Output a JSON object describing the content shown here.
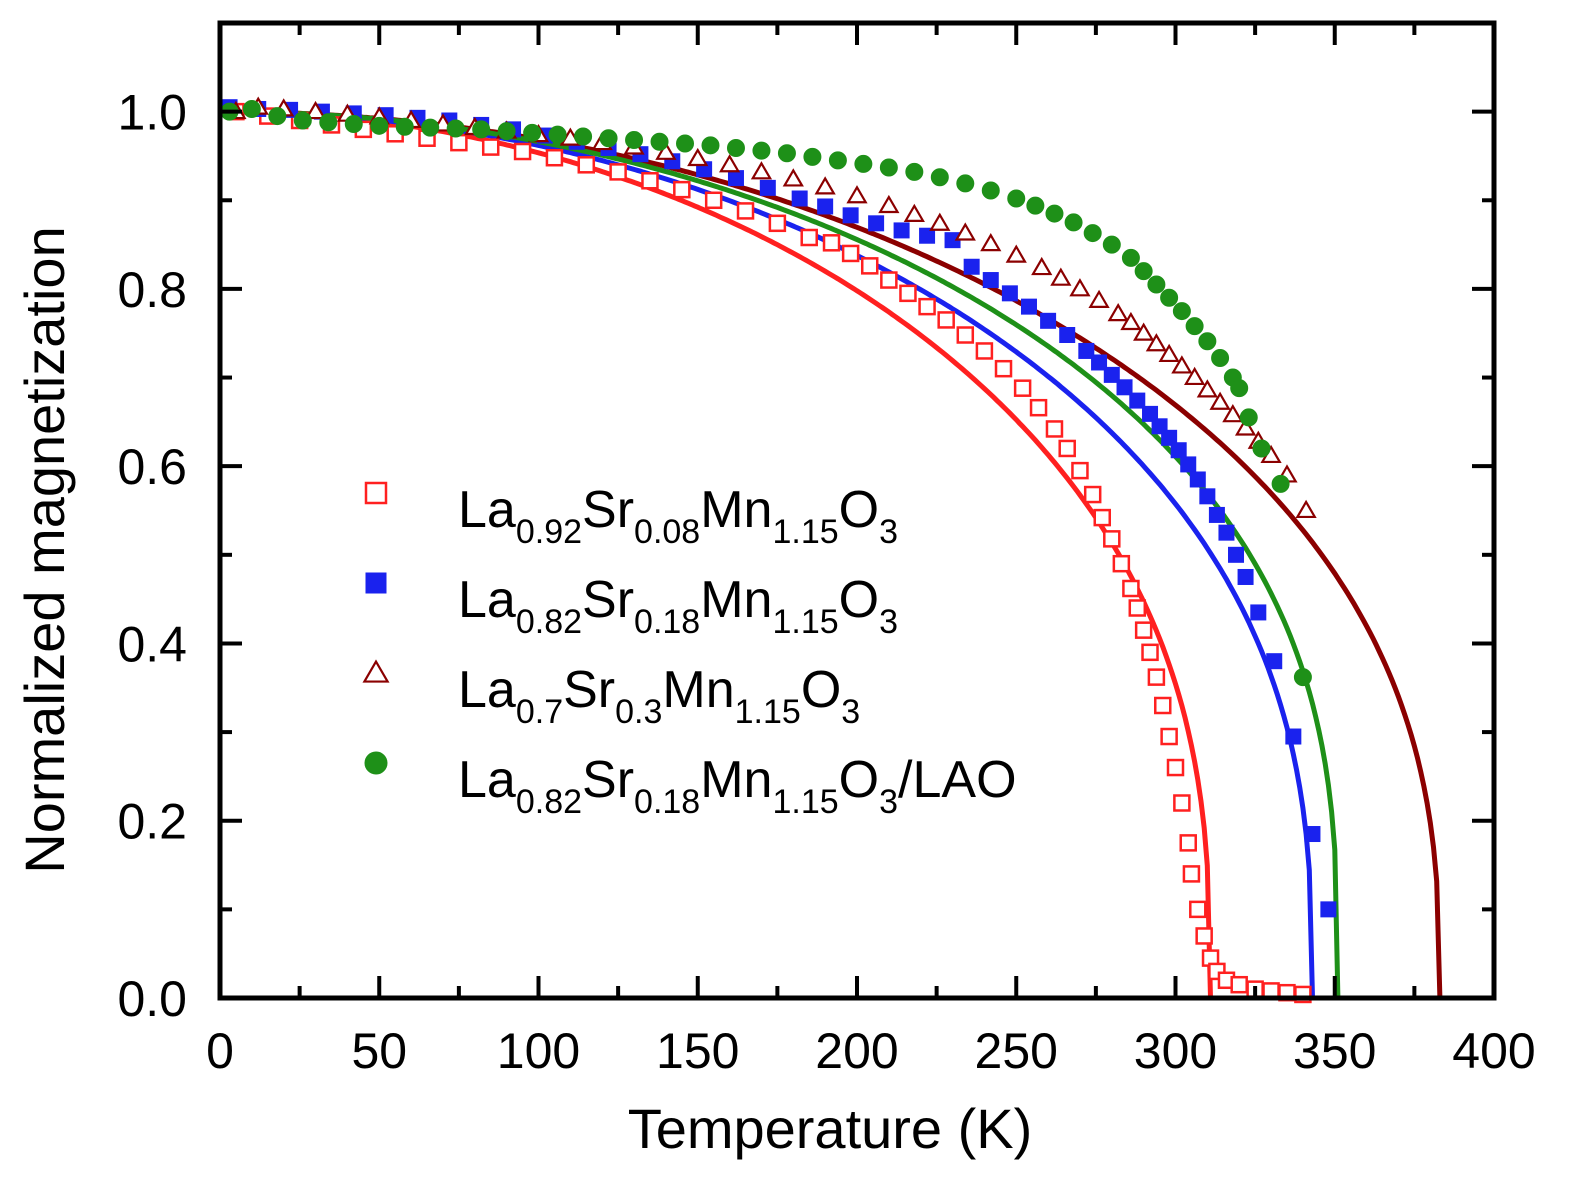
{
  "chart_data": {
    "type": "scatter",
    "title": "",
    "xlabel": "Temperature (K)",
    "ylabel": "Normalized magnetization",
    "xlim": [
      0,
      400
    ],
    "ylim": [
      0,
      1.1
    ],
    "xticks": [
      0,
      50,
      100,
      150,
      200,
      250,
      300,
      350,
      400
    ],
    "yticks": [
      0.0,
      0.2,
      0.4,
      0.6,
      0.8,
      1.0
    ],
    "xtick_labels": [
      "0",
      "50",
      "100",
      "150",
      "200",
      "250",
      "300",
      "350",
      "400"
    ],
    "ytick_labels": [
      "0.0",
      "0.2",
      "0.4",
      "0.6",
      "0.8",
      "1.0"
    ],
    "legend_position": "center-left",
    "series": [
      {
        "name": "La0.92Sr0.08Mn1.15O3",
        "legend_parts": [
          [
            "La",
            ""
          ],
          [
            "0.92",
            "sub"
          ],
          [
            "Sr",
            ""
          ],
          [
            "0.08",
            "sub"
          ],
          [
            "Mn",
            ""
          ],
          [
            "1.15",
            "sub"
          ],
          [
            "O",
            ""
          ],
          [
            "3",
            "sub"
          ]
        ],
        "color": "#ff2020",
        "marker": "open-square",
        "fit": {
          "tc": 311,
          "beta": 0.36,
          "pre": [
            0,
            1,
            0.97,
            0.03
          ],
          "n": 2
        },
        "points": [
          [
            5,
            1.0
          ],
          [
            15,
            0.995
          ],
          [
            25,
            0.99
          ],
          [
            35,
            0.985
          ],
          [
            45,
            0.98
          ],
          [
            55,
            0.975
          ],
          [
            65,
            0.97
          ],
          [
            75,
            0.965
          ],
          [
            85,
            0.96
          ],
          [
            95,
            0.955
          ],
          [
            105,
            0.948
          ],
          [
            115,
            0.94
          ],
          [
            125,
            0.932
          ],
          [
            135,
            0.922
          ],
          [
            145,
            0.912
          ],
          [
            155,
            0.9
          ],
          [
            165,
            0.888
          ],
          [
            175,
            0.874
          ],
          [
            185,
            0.858
          ],
          [
            192,
            0.852
          ],
          [
            198,
            0.84
          ],
          [
            204,
            0.826
          ],
          [
            210,
            0.81
          ],
          [
            216,
            0.795
          ],
          [
            222,
            0.78
          ],
          [
            228,
            0.765
          ],
          [
            234,
            0.748
          ],
          [
            240,
            0.73
          ],
          [
            246,
            0.71
          ],
          [
            252,
            0.688
          ],
          [
            257,
            0.666
          ],
          [
            262,
            0.642
          ],
          [
            266,
            0.62
          ],
          [
            270,
            0.595
          ],
          [
            274,
            0.568
          ],
          [
            277,
            0.542
          ],
          [
            280,
            0.518
          ],
          [
            283,
            0.49
          ],
          [
            286,
            0.462
          ],
          [
            288,
            0.44
          ],
          [
            290,
            0.415
          ],
          [
            292,
            0.39
          ],
          [
            294,
            0.362
          ],
          [
            296,
            0.33
          ],
          [
            298,
            0.295
          ],
          [
            300,
            0.26
          ],
          [
            302,
            0.22
          ],
          [
            304,
            0.175
          ],
          [
            305,
            0.14
          ],
          [
            307,
            0.1
          ],
          [
            309,
            0.07
          ],
          [
            311,
            0.045
          ],
          [
            313,
            0.03
          ],
          [
            316,
            0.02
          ],
          [
            320,
            0.015
          ],
          [
            325,
            0.01
          ],
          [
            330,
            0.008
          ],
          [
            335,
            0.006
          ],
          [
            340,
            0.004
          ]
        ]
      },
      {
        "name": "La0.82Sr0.18Mn1.15O3",
        "legend_parts": [
          [
            "La",
            ""
          ],
          [
            "0.82",
            "sub"
          ],
          [
            "Sr",
            ""
          ],
          [
            "0.18",
            "sub"
          ],
          [
            "Mn",
            ""
          ],
          [
            "1.15",
            "sub"
          ],
          [
            "O",
            ""
          ],
          [
            "3",
            "sub"
          ]
        ],
        "color": "#1a22ee",
        "marker": "filled-square",
        "fit": {
          "tc": 343,
          "beta": 0.36,
          "pre": [
            0,
            1,
            0.975,
            0.025
          ],
          "n": 2
        },
        "points": [
          [
            3,
            1.005
          ],
          [
            12,
            1.003
          ],
          [
            22,
            1.002
          ],
          [
            32,
            1.0
          ],
          [
            42,
            0.998
          ],
          [
            52,
            0.996
          ],
          [
            62,
            0.993
          ],
          [
            72,
            0.99
          ],
          [
            82,
            0.985
          ],
          [
            92,
            0.98
          ],
          [
            102,
            0.973
          ],
          [
            112,
            0.966
          ],
          [
            122,
            0.959
          ],
          [
            132,
            0.952
          ],
          [
            142,
            0.944
          ],
          [
            152,
            0.935
          ],
          [
            162,
            0.925
          ],
          [
            172,
            0.914
          ],
          [
            182,
            0.902
          ],
          [
            190,
            0.893
          ],
          [
            198,
            0.883
          ],
          [
            206,
            0.874
          ],
          [
            214,
            0.866
          ],
          [
            222,
            0.86
          ],
          [
            230,
            0.855
          ],
          [
            236,
            0.825
          ],
          [
            242,
            0.81
          ],
          [
            248,
            0.795
          ],
          [
            254,
            0.78
          ],
          [
            260,
            0.764
          ],
          [
            266,
            0.748
          ],
          [
            272,
            0.73
          ],
          [
            276,
            0.717
          ],
          [
            280,
            0.703
          ],
          [
            284,
            0.689
          ],
          [
            288,
            0.674
          ],
          [
            292,
            0.659
          ],
          [
            295,
            0.645
          ],
          [
            298,
            0.632
          ],
          [
            301,
            0.618
          ],
          [
            304,
            0.602
          ],
          [
            307,
            0.585
          ],
          [
            310,
            0.566
          ],
          [
            313,
            0.545
          ],
          [
            316,
            0.525
          ],
          [
            319,
            0.5
          ],
          [
            322,
            0.475
          ],
          [
            326,
            0.435
          ],
          [
            331,
            0.38
          ],
          [
            337,
            0.295
          ],
          [
            343,
            0.185
          ],
          [
            348,
            0.1
          ]
        ]
      },
      {
        "name": "La0.7Sr0.3Mn1.15O3",
        "legend_parts": [
          [
            "La",
            ""
          ],
          [
            "0.7",
            "sub"
          ],
          [
            "Sr",
            ""
          ],
          [
            "0.3",
            "sub"
          ],
          [
            "Mn",
            ""
          ],
          [
            "1.15",
            "sub"
          ],
          [
            "O",
            ""
          ],
          [
            "3",
            "sub"
          ]
        ],
        "color": "#8b0000",
        "marker": "open-triangle",
        "fit": {
          "tc": 383,
          "beta": 0.37,
          "pre": [
            0,
            1,
            0.995,
            0.005
          ],
          "n": 2
        },
        "points": [
          [
            5,
            1.0
          ],
          [
            12,
            1.005
          ],
          [
            20,
            1.003
          ],
          [
            30,
            1.0
          ],
          [
            40,
            0.997
          ],
          [
            50,
            0.994
          ],
          [
            60,
            0.99
          ],
          [
            70,
            0.986
          ],
          [
            80,
            0.982
          ],
          [
            90,
            0.978
          ],
          [
            100,
            0.974
          ],
          [
            110,
            0.97
          ],
          [
            120,
            0.965
          ],
          [
            130,
            0.96
          ],
          [
            140,
            0.954
          ],
          [
            150,
            0.947
          ],
          [
            160,
            0.94
          ],
          [
            170,
            0.932
          ],
          [
            180,
            0.924
          ],
          [
            190,
            0.915
          ],
          [
            200,
            0.905
          ],
          [
            210,
            0.894
          ],
          [
            218,
            0.884
          ],
          [
            226,
            0.874
          ],
          [
            234,
            0.863
          ],
          [
            242,
            0.851
          ],
          [
            250,
            0.838
          ],
          [
            258,
            0.824
          ],
          [
            264,
            0.812
          ],
          [
            270,
            0.8
          ],
          [
            276,
            0.787
          ],
          [
            282,
            0.772
          ],
          [
            286,
            0.762
          ],
          [
            290,
            0.75
          ],
          [
            294,
            0.738
          ],
          [
            298,
            0.726
          ],
          [
            302,
            0.713
          ],
          [
            306,
            0.7
          ],
          [
            310,
            0.686
          ],
          [
            314,
            0.672
          ],
          [
            318,
            0.658
          ],
          [
            322,
            0.643
          ],
          [
            326,
            0.628
          ],
          [
            330,
            0.612
          ],
          [
            335,
            0.59
          ],
          [
            341,
            0.55
          ]
        ]
      },
      {
        "name": "La0.82Sr0.18Mn1.15O3/LAO",
        "legend_parts": [
          [
            "La",
            ""
          ],
          [
            "0.82",
            "sub"
          ],
          [
            "Sr",
            ""
          ],
          [
            "0.18",
            "sub"
          ],
          [
            "Mn",
            ""
          ],
          [
            "1.15",
            "sub"
          ],
          [
            "O",
            ""
          ],
          [
            "3",
            "sub"
          ],
          [
            "/LAO",
            ""
          ]
        ],
        "color": "#1e9018",
        "marker": "filled-circle",
        "fit": {
          "tc": 351,
          "beta": 0.33,
          "pre": [
            0,
            1,
            0.995,
            0.005
          ],
          "n": 2
        },
        "points": [
          [
            3,
            1.0
          ],
          [
            10,
            1.003
          ],
          [
            18,
            0.995
          ],
          [
            26,
            0.99
          ],
          [
            34,
            0.988
          ],
          [
            42,
            0.986
          ],
          [
            50,
            0.984
          ],
          [
            58,
            0.983
          ],
          [
            66,
            0.982
          ],
          [
            74,
            0.981
          ],
          [
            82,
            0.98
          ],
          [
            90,
            0.978
          ],
          [
            98,
            0.976
          ],
          [
            106,
            0.974
          ],
          [
            114,
            0.972
          ],
          [
            122,
            0.97
          ],
          [
            130,
            0.968
          ],
          [
            138,
            0.966
          ],
          [
            146,
            0.964
          ],
          [
            154,
            0.962
          ],
          [
            162,
            0.959
          ],
          [
            170,
            0.956
          ],
          [
            178,
            0.953
          ],
          [
            186,
            0.949
          ],
          [
            194,
            0.945
          ],
          [
            202,
            0.941
          ],
          [
            210,
            0.937
          ],
          [
            218,
            0.932
          ],
          [
            226,
            0.926
          ],
          [
            234,
            0.919
          ],
          [
            242,
            0.911
          ],
          [
            250,
            0.902
          ],
          [
            256,
            0.894
          ],
          [
            262,
            0.885
          ],
          [
            268,
            0.875
          ],
          [
            274,
            0.863
          ],
          [
            280,
            0.85
          ],
          [
            286,
            0.835
          ],
          [
            290,
            0.82
          ],
          [
            294,
            0.805
          ],
          [
            298,
            0.79
          ],
          [
            302,
            0.775
          ],
          [
            306,
            0.758
          ],
          [
            310,
            0.741
          ],
          [
            314,
            0.722
          ],
          [
            318,
            0.7
          ],
          [
            320,
            0.688
          ],
          [
            323,
            0.655
          ],
          [
            327,
            0.62
          ],
          [
            333,
            0.58
          ],
          [
            340,
            0.362
          ]
        ]
      }
    ]
  }
}
